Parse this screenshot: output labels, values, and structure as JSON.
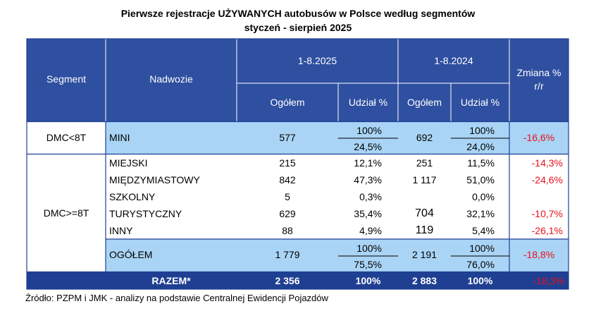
{
  "title_line1": "Pierwsze rejestracje UŻYWANYCH autobusów w Polsce według segmentów",
  "title_line2": "styczeń - sierpień 2025",
  "headers": {
    "segment": "Segment",
    "nadwozie": "Nadwozie",
    "period_2025": "1-8.2025",
    "period_2024": "1-8.2024",
    "zmiana": "Zmiana %\nr/r",
    "ogolem": "Ogółem",
    "udzial": "Udział %"
  },
  "mini": {
    "segment": "DMC<8T",
    "name": "MINI",
    "v2025": "577",
    "share2025_top": "100%",
    "share2025_bottom": "24,5%",
    "v2024": "692",
    "share2024_top": "100%",
    "share2024_bottom": "24,0%",
    "change": "-16,6%"
  },
  "large_segment": "DMC>=8T",
  "rows": [
    {
      "name": "MIEJSKI",
      "v2025": "215",
      "s2025": "12,1%",
      "v2024": "251",
      "s2024": "11,5%",
      "change": "-14,3%"
    },
    {
      "name": "MIĘDZYMIASTOWY",
      "v2025": "842",
      "s2025": "47,3%",
      "v2024": "1 117",
      "s2024": "51,0%",
      "change": "-24,6%"
    },
    {
      "name": "SZKOLNY",
      "v2025": "5",
      "s2025": "0,3%",
      "v2024": "",
      "s2024": "0,0%",
      "change": ""
    },
    {
      "name": "TURYSTYCZNY",
      "v2025": "629",
      "s2025": "35,4%",
      "v2024": "704",
      "s2024": "32,1%",
      "change": "-10,7%"
    },
    {
      "name": "INNY",
      "v2025": "88",
      "s2025": "4,9%",
      "v2024": "119",
      "s2024": "5,4%",
      "change": "-26,1%"
    }
  ],
  "ogolem": {
    "name": "OGÓŁEM",
    "v2025": "1 779",
    "share2025_top": "100%",
    "share2025_bottom": "75,5%",
    "v2024": "2 191",
    "share2024_top": "100%",
    "share2024_bottom": "76,0%",
    "change": "-18,8%"
  },
  "razem": {
    "label": "RAZEM*",
    "v2025": "2 356",
    "s2025": "100%",
    "v2024": "2 883",
    "s2024": "100%",
    "change": "-18,3%"
  },
  "source": "Źródło: PZPM i JMK - analizy na podstawie Centralnej Ewidencji Pojazdów"
}
